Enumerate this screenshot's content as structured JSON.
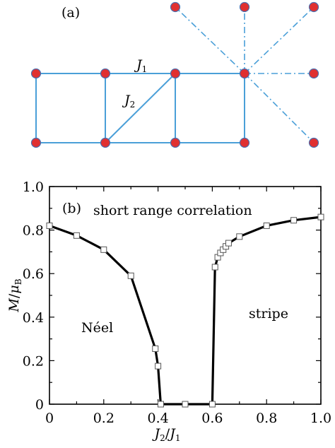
{
  "panel_a": {
    "label": "(a)",
    "bond1_label": "J",
    "bond1_sub": "1",
    "bond2_label": "J",
    "bond2_sub": "2",
    "colors": {
      "bond": "#4a9fd8",
      "site": "#e03030",
      "site_edge": "#4a6fb0"
    }
  },
  "chart_data": {
    "type": "line",
    "panel_label": "(b)",
    "annotation_top": "short range correlation",
    "region_left": "Néel",
    "region_right": "stripe",
    "xlabel": "J",
    "xlabel_sub1": "2",
    "xlabel_sub2": "1",
    "ylabel": "M",
    "ylabel_sub": "B",
    "xlim": [
      0,
      1.0
    ],
    "ylim": [
      0,
      1.0
    ],
    "xticks": [
      "0",
      "0.2",
      "0.4",
      "0.6",
      "0.8",
      "1.0"
    ],
    "yticks": [
      "0",
      "0.2",
      "0.4",
      "0.6",
      "0.8",
      "1.0"
    ],
    "grid": false,
    "series": [
      {
        "x": [
          0,
          0.1,
          0.2,
          0.3,
          0.39,
          0.4,
          0.41,
          0.5,
          0.6,
          0.61,
          0.62,
          0.63,
          0.64,
          0.65,
          0.66,
          0.7,
          0.8,
          0.9,
          1.0
        ],
        "y": [
          0.82,
          0.775,
          0.71,
          0.59,
          0.255,
          0.175,
          0,
          0,
          0,
          0.63,
          0.675,
          0.695,
          0.71,
          0.725,
          0.74,
          0.77,
          0.82,
          0.845,
          0.86
        ]
      }
    ]
  }
}
